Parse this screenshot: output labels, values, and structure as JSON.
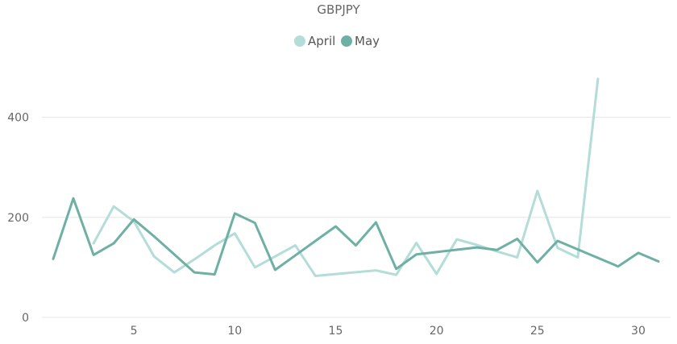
{
  "chart_data": {
    "type": "line",
    "title": "GBPJPY",
    "legend_position": "top-center",
    "xlim": [
      1,
      31
    ],
    "ylim": [
      0,
      480
    ],
    "x_ticks": [
      5,
      10,
      15,
      20,
      25,
      30
    ],
    "y_ticks": [
      0,
      200,
      400
    ],
    "grid": "horizontal",
    "series": [
      {
        "name": "April",
        "color": "#b4dcd8",
        "points": [
          [
            3,
            148
          ],
          [
            4,
            222
          ],
          [
            5,
            192
          ],
          [
            6,
            122
          ],
          [
            7,
            90
          ],
          [
            8,
            116
          ],
          [
            9,
            144
          ],
          [
            10,
            168
          ],
          [
            11,
            100
          ],
          [
            12,
            122
          ],
          [
            13,
            144
          ],
          [
            14,
            83
          ],
          [
            17,
            94
          ],
          [
            18,
            85
          ],
          [
            19,
            149
          ],
          [
            20,
            87
          ],
          [
            21,
            156
          ],
          [
            22,
            145
          ],
          [
            23,
            132
          ],
          [
            24,
            120
          ],
          [
            25,
            253
          ],
          [
            26,
            139
          ],
          [
            27,
            120
          ],
          [
            28,
            477
          ]
        ]
      },
      {
        "name": "May",
        "color": "#6fb0a4",
        "points": [
          [
            1,
            117
          ],
          [
            2,
            238
          ],
          [
            3,
            125
          ],
          [
            4,
            148
          ],
          [
            5,
            196
          ],
          [
            6,
            162
          ],
          [
            8,
            90
          ],
          [
            9,
            86
          ],
          [
            10,
            208
          ],
          [
            11,
            189
          ],
          [
            12,
            95
          ],
          [
            15,
            182
          ],
          [
            16,
            144
          ],
          [
            17,
            190
          ],
          [
            18,
            97
          ],
          [
            19,
            126
          ],
          [
            22,
            140
          ],
          [
            23,
            135
          ],
          [
            24,
            157
          ],
          [
            25,
            110
          ],
          [
            26,
            153
          ],
          [
            29,
            102
          ],
          [
            30,
            129
          ],
          [
            31,
            112
          ]
        ]
      }
    ]
  }
}
